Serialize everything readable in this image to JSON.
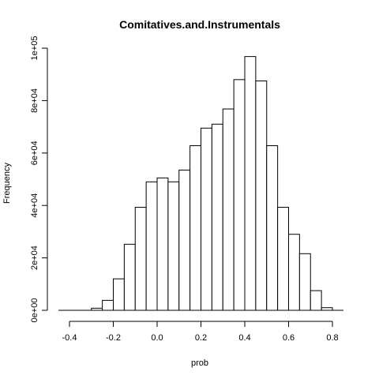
{
  "chart_data": {
    "type": "bar",
    "title": "Comitatives.and.Instrumentals",
    "xlabel": "prob",
    "ylabel": "Frequency",
    "bin_width": 0.05,
    "bins_start": [
      -0.3,
      -0.25,
      -0.2,
      -0.15,
      -0.1,
      -0.05,
      0.0,
      0.05,
      0.1,
      0.15,
      0.2,
      0.25,
      0.3,
      0.35,
      0.4,
      0.45,
      0.5,
      0.55,
      0.6,
      0.65,
      0.7,
      0.75
    ],
    "values": [
      800,
      3800,
      12000,
      25200,
      39300,
      49000,
      50500,
      49000,
      53500,
      62800,
      69500,
      71000,
      76800,
      88000,
      96800,
      87500,
      62800,
      39300,
      29000,
      21600,
      7500,
      1000
    ],
    "xlim": [
      -0.4,
      0.8
    ],
    "ylim": [
      0,
      100000
    ],
    "x_ticks": [
      -0.4,
      -0.2,
      0.0,
      0.2,
      0.4,
      0.6,
      0.8
    ],
    "x_tick_labels": [
      "-0.4",
      "-0.2",
      "0.0",
      "0.2",
      "0.4",
      "0.6",
      "0.8"
    ],
    "y_ticks": [
      0,
      20000,
      40000,
      60000,
      80000,
      100000
    ],
    "y_tick_labels": [
      "0e+00",
      "2e+04",
      "4e+04",
      "6e+04",
      "8e+04",
      "1e+05"
    ],
    "grid": false,
    "bar_fill": "#ffffff",
    "bar_stroke": "#000000"
  }
}
